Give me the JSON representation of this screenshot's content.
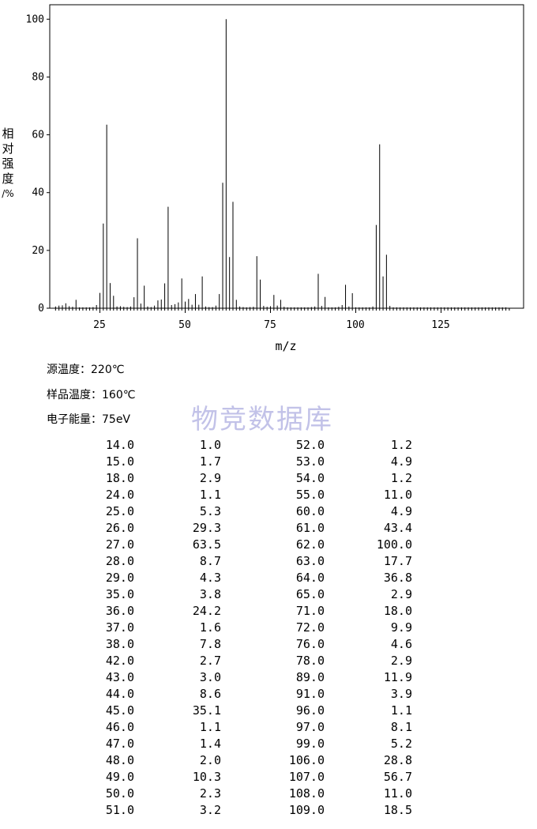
{
  "chart_data": {
    "type": "bar",
    "xlabel": "m/z",
    "ylabel": "相对强度/%",
    "xlim": [
      10,
      147
    ],
    "ylim": [
      0,
      105
    ],
    "xticks": [
      25,
      50,
      75,
      100,
      125
    ],
    "yticks": [
      0,
      20,
      40,
      60,
      80,
      100
    ],
    "peaks": [
      {
        "x": 12,
        "y": 0.6
      },
      {
        "x": 13,
        "y": 0.9
      },
      {
        "x": 14,
        "y": 1.0
      },
      {
        "x": 15,
        "y": 1.7
      },
      {
        "x": 16,
        "y": 0.7
      },
      {
        "x": 17,
        "y": 0.5
      },
      {
        "x": 18,
        "y": 2.9
      },
      {
        "x": 19,
        "y": 0.3
      },
      {
        "x": 20,
        "y": 0.3
      },
      {
        "x": 21,
        "y": 0.3
      },
      {
        "x": 22,
        "y": 0.3
      },
      {
        "x": 23,
        "y": 0.4
      },
      {
        "x": 24,
        "y": 1.1
      },
      {
        "x": 25,
        "y": 5.3
      },
      {
        "x": 26,
        "y": 29.3
      },
      {
        "x": 27,
        "y": 63.5
      },
      {
        "x": 28,
        "y": 8.7
      },
      {
        "x": 29,
        "y": 4.3
      },
      {
        "x": 30,
        "y": 0.6
      },
      {
        "x": 31,
        "y": 0.7
      },
      {
        "x": 32,
        "y": 0.5
      },
      {
        "x": 33,
        "y": 0.4
      },
      {
        "x": 34,
        "y": 0.6
      },
      {
        "x": 35,
        "y": 3.8
      },
      {
        "x": 36,
        "y": 24.2
      },
      {
        "x": 37,
        "y": 1.6
      },
      {
        "x": 38,
        "y": 7.8
      },
      {
        "x": 39,
        "y": 0.6
      },
      {
        "x": 40,
        "y": 0.4
      },
      {
        "x": 41,
        "y": 0.9
      },
      {
        "x": 42,
        "y": 2.7
      },
      {
        "x": 43,
        "y": 3.0
      },
      {
        "x": 44,
        "y": 8.6
      },
      {
        "x": 45,
        "y": 35.1
      },
      {
        "x": 46,
        "y": 1.1
      },
      {
        "x": 47,
        "y": 1.4
      },
      {
        "x": 48,
        "y": 2.0
      },
      {
        "x": 49,
        "y": 10.3
      },
      {
        "x": 50,
        "y": 2.3
      },
      {
        "x": 51,
        "y": 3.2
      },
      {
        "x": 52,
        "y": 1.2
      },
      {
        "x": 53,
        "y": 4.9
      },
      {
        "x": 54,
        "y": 1.2
      },
      {
        "x": 55,
        "y": 11.0
      },
      {
        "x": 56,
        "y": 0.6
      },
      {
        "x": 57,
        "y": 0.4
      },
      {
        "x": 58,
        "y": 0.4
      },
      {
        "x": 59,
        "y": 0.9
      },
      {
        "x": 60,
        "y": 4.9
      },
      {
        "x": 61,
        "y": 43.4
      },
      {
        "x": 62,
        "y": 100.0
      },
      {
        "x": 63,
        "y": 17.7
      },
      {
        "x": 64,
        "y": 36.8
      },
      {
        "x": 65,
        "y": 2.9
      },
      {
        "x": 66,
        "y": 0.6
      },
      {
        "x": 67,
        "y": 0.4
      },
      {
        "x": 68,
        "y": 0.3
      },
      {
        "x": 69,
        "y": 0.4
      },
      {
        "x": 70,
        "y": 0.5
      },
      {
        "x": 71,
        "y": 18.0
      },
      {
        "x": 72,
        "y": 9.9
      },
      {
        "x": 73,
        "y": 0.8
      },
      {
        "x": 74,
        "y": 0.5
      },
      {
        "x": 75,
        "y": 0.7
      },
      {
        "x": 76,
        "y": 4.6
      },
      {
        "x": 77,
        "y": 0.9
      },
      {
        "x": 78,
        "y": 2.9
      },
      {
        "x": 79,
        "y": 0.5
      },
      {
        "x": 80,
        "y": 0.3
      },
      {
        "x": 81,
        "y": 0.3
      },
      {
        "x": 82,
        "y": 0.3
      },
      {
        "x": 83,
        "y": 0.3
      },
      {
        "x": 84,
        "y": 0.3
      },
      {
        "x": 85,
        "y": 0.3
      },
      {
        "x": 86,
        "y": 0.3
      },
      {
        "x": 87,
        "y": 0.4
      },
      {
        "x": 88,
        "y": 0.6
      },
      {
        "x": 89,
        "y": 11.9
      },
      {
        "x": 90,
        "y": 0.8
      },
      {
        "x": 91,
        "y": 3.9
      },
      {
        "x": 92,
        "y": 0.3
      },
      {
        "x": 93,
        "y": 0.3
      },
      {
        "x": 94,
        "y": 0.3
      },
      {
        "x": 95,
        "y": 0.5
      },
      {
        "x": 96,
        "y": 1.1
      },
      {
        "x": 97,
        "y": 8.1
      },
      {
        "x": 98,
        "y": 0.6
      },
      {
        "x": 99,
        "y": 5.2
      },
      {
        "x": 100,
        "y": 0.3
      },
      {
        "x": 101,
        "y": 0.3
      },
      {
        "x": 102,
        "y": 0.3
      },
      {
        "x": 103,
        "y": 0.3
      },
      {
        "x": 104,
        "y": 0.3
      },
      {
        "x": 105,
        "y": 0.6
      },
      {
        "x": 106,
        "y": 28.8
      },
      {
        "x": 107,
        "y": 56.7
      },
      {
        "x": 108,
        "y": 11.0
      },
      {
        "x": 109,
        "y": 18.5
      },
      {
        "x": 110,
        "y": 0.8
      },
      {
        "x": 111,
        "y": 0.3
      },
      {
        "x": 112,
        "y": 0.3
      },
      {
        "x": 113,
        "y": 0.3
      },
      {
        "x": 114,
        "y": 0.3
      },
      {
        "x": 115,
        "y": 0.3
      },
      {
        "x": 116,
        "y": 0.3
      },
      {
        "x": 117,
        "y": 0.3
      },
      {
        "x": 118,
        "y": 0.3
      },
      {
        "x": 119,
        "y": 0.3
      },
      {
        "x": 120,
        "y": 0.3
      },
      {
        "x": 121,
        "y": 0.3
      },
      {
        "x": 122,
        "y": 0.3
      },
      {
        "x": 123,
        "y": 0.3
      },
      {
        "x": 124,
        "y": 0.3
      },
      {
        "x": 125,
        "y": 0.3
      },
      {
        "x": 126,
        "y": 0.3
      },
      {
        "x": 127,
        "y": 0.3
      },
      {
        "x": 128,
        "y": 0.3
      },
      {
        "x": 129,
        "y": 0.3
      },
      {
        "x": 130,
        "y": 0.3
      },
      {
        "x": 131,
        "y": 0.3
      },
      {
        "x": 132,
        "y": 0.3
      },
      {
        "x": 133,
        "y": 0.3
      },
      {
        "x": 134,
        "y": 0.3
      },
      {
        "x": 135,
        "y": 0.3
      },
      {
        "x": 136,
        "y": 0.3
      },
      {
        "x": 137,
        "y": 0.3
      },
      {
        "x": 138,
        "y": 0.3
      },
      {
        "x": 139,
        "y": 0.3
      },
      {
        "x": 140,
        "y": 0.3
      },
      {
        "x": 141,
        "y": 0.3
      },
      {
        "x": 142,
        "y": 0.3
      },
      {
        "x": 143,
        "y": 0.3
      },
      {
        "x": 144,
        "y": 0.3
      }
    ]
  },
  "ylabel_chars": [
    "相",
    "对",
    "强",
    "度",
    "/%"
  ],
  "conditions": {
    "source_temp": "源温度：220℃",
    "sample_temp": "样品温度：160℃",
    "electron_energy": "电子能量：75eV"
  },
  "watermark": "物竞数据库",
  "peak_table": [
    [
      "14.0",
      "1.0",
      "52.0",
      "1.2"
    ],
    [
      "15.0",
      "1.7",
      "53.0",
      "4.9"
    ],
    [
      "18.0",
      "2.9",
      "54.0",
      "1.2"
    ],
    [
      "24.0",
      "1.1",
      "55.0",
      "11.0"
    ],
    [
      "25.0",
      "5.3",
      "60.0",
      "4.9"
    ],
    [
      "26.0",
      "29.3",
      "61.0",
      "43.4"
    ],
    [
      "27.0",
      "63.5",
      "62.0",
      "100.0"
    ],
    [
      "28.0",
      "8.7",
      "63.0",
      "17.7"
    ],
    [
      "29.0",
      "4.3",
      "64.0",
      "36.8"
    ],
    [
      "35.0",
      "3.8",
      "65.0",
      "2.9"
    ],
    [
      "36.0",
      "24.2",
      "71.0",
      "18.0"
    ],
    [
      "37.0",
      "1.6",
      "72.0",
      "9.9"
    ],
    [
      "38.0",
      "7.8",
      "76.0",
      "4.6"
    ],
    [
      "42.0",
      "2.7",
      "78.0",
      "2.9"
    ],
    [
      "43.0",
      "3.0",
      "89.0",
      "11.9"
    ],
    [
      "44.0",
      "8.6",
      "91.0",
      "3.9"
    ],
    [
      "45.0",
      "35.1",
      "96.0",
      "1.1"
    ],
    [
      "46.0",
      "1.1",
      "97.0",
      "8.1"
    ],
    [
      "47.0",
      "1.4",
      "99.0",
      "5.2"
    ],
    [
      "48.0",
      "2.0",
      "106.0",
      "28.8"
    ],
    [
      "49.0",
      "10.3",
      "107.0",
      "56.7"
    ],
    [
      "50.0",
      "2.3",
      "108.0",
      "11.0"
    ],
    [
      "51.0",
      "3.2",
      "109.0",
      "18.5"
    ]
  ]
}
